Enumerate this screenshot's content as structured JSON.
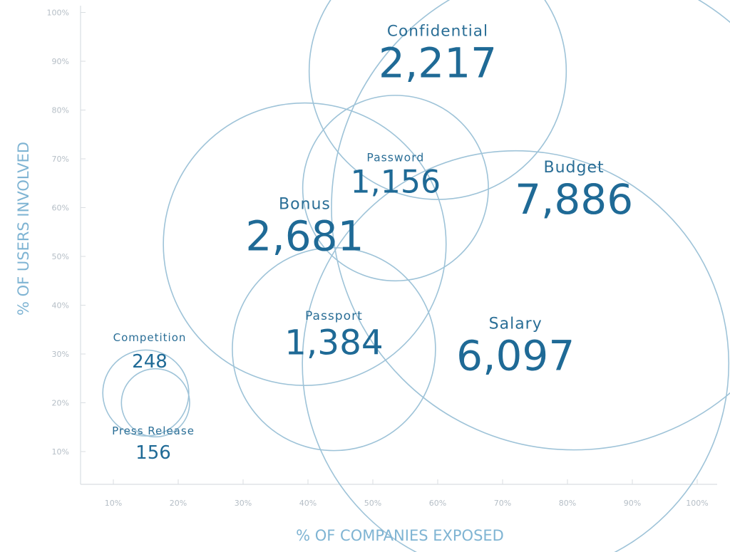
{
  "chart_data": {
    "type": "scatter",
    "subtype": "bubble",
    "xlabel": "% OF COMPANIES EXPOSED",
    "ylabel": "% OF USERS INVOLVED",
    "x_ticks": [
      "10%",
      "20%",
      "30%",
      "40%",
      "50%",
      "60%",
      "70%",
      "80%",
      "90%",
      "100%"
    ],
    "y_ticks": [
      "10%",
      "20%",
      "30%",
      "40%",
      "50%",
      "60%",
      "70%",
      "80%",
      "90%",
      "100%"
    ],
    "xlim": [
      5,
      103
    ],
    "ylim": [
      3,
      103
    ],
    "grid": false,
    "series": [
      {
        "label": "Budget",
        "value_text": "7,886",
        "value": 7886,
        "x": 81,
        "y": 60
      },
      {
        "label": "Salary",
        "value_text": "6,097",
        "value": 6097,
        "x": 72,
        "y": 28
      },
      {
        "label": "Bonus",
        "value_text": "2,681",
        "value": 2681,
        "x": 39.5,
        "y": 52.5
      },
      {
        "label": "Confidential",
        "value_text": "2,217",
        "value": 2217,
        "x": 60,
        "y": 88
      },
      {
        "label": "Passport",
        "value_text": "1,384",
        "value": 1384,
        "x": 44,
        "y": 31
      },
      {
        "label": "Password",
        "value_text": "1,156",
        "value": 1156,
        "x": 53.5,
        "y": 64
      },
      {
        "label": "Competition",
        "value_text": "248",
        "value": 248,
        "x": 15,
        "y": 22
      },
      {
        "label": "Press Release",
        "value_text": "156",
        "value": 156,
        "x": 16.5,
        "y": 20
      }
    ]
  },
  "colors": {
    "axis_title": "#7fb4d3",
    "tick": "#b5bec6",
    "bubble_stroke": "#9ec3d8",
    "label": "#2a6e96",
    "axis_line": "#d9dee2"
  }
}
